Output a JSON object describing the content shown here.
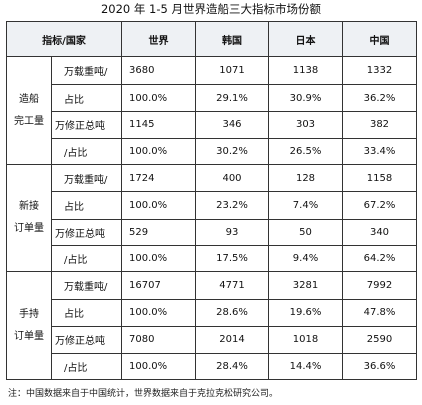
{
  "title": "2020 年 1-5 月世界造船三大指标市场份额",
  "header": {
    "corner": "指标/国家",
    "countries": [
      "世界",
      "韩国",
      "日本",
      "中国"
    ]
  },
  "sections": [
    {
      "name_line1": "造船",
      "name_line2": "完工量",
      "groups": [
        {
          "unit_top": "万载重吨/",
          "unit_bottom": "占比",
          "values": [
            "3680",
            "1071",
            "1138",
            "1332"
          ],
          "shares": [
            "100.0%",
            "29.1%",
            "30.9%",
            "36.2%"
          ]
        },
        {
          "unit_top": "万修正总吨",
          "unit_bottom": "/占比",
          "values": [
            "1145",
            "346",
            "303",
            "382"
          ],
          "shares": [
            "100.0%",
            "30.2%",
            "26.5%",
            "33.4%"
          ]
        }
      ]
    },
    {
      "name_line1": "新接",
      "name_line2": "订单量",
      "groups": [
        {
          "unit_top": "万载重吨/",
          "unit_bottom": "占比",
          "values": [
            "1724",
            "400",
            "128",
            "1158"
          ],
          "shares": [
            "100.0%",
            "23.2%",
            "7.4%",
            "67.2%"
          ]
        },
        {
          "unit_top": "万修正总吨",
          "unit_bottom": "/占比",
          "values": [
            "529",
            "93",
            "50",
            "340"
          ],
          "shares": [
            "100.0%",
            "17.5%",
            "9.4%",
            "64.2%"
          ]
        }
      ]
    },
    {
      "name_line1": "手持",
      "name_line2": "订单量",
      "groups": [
        {
          "unit_top": "万载重吨/",
          "unit_bottom": "占比",
          "values": [
            "16707",
            "4771",
            "3281",
            "7992"
          ],
          "shares": [
            "100.0%",
            "28.6%",
            "19.6%",
            "47.8%"
          ]
        },
        {
          "unit_top": "万修正总吨",
          "unit_bottom": "/占比",
          "values": [
            "7080",
            "2014",
            "1018",
            "2590"
          ],
          "shares": [
            "100.0%",
            "28.4%",
            "14.4%",
            "36.6%"
          ]
        }
      ]
    }
  ],
  "footnote": "注：中国数据来自于中国统计，世界数据来自于克拉克松研究公司。"
}
